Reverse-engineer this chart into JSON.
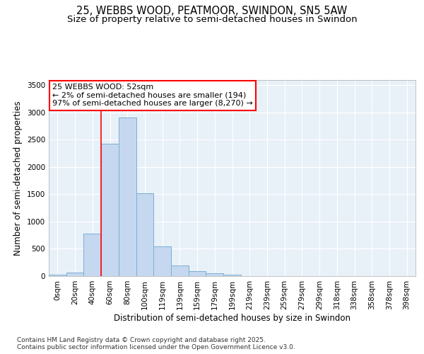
{
  "title_line1": "25, WEBBS WOOD, PEATMOOR, SWINDON, SN5 5AW",
  "title_line2": "Size of property relative to semi-detached houses in Swindon",
  "xlabel": "Distribution of semi-detached houses by size in Swindon",
  "ylabel": "Number of semi-detached properties",
  "footer": "Contains HM Land Registry data © Crown copyright and database right 2025.\nContains public sector information licensed under the Open Government Licence v3.0.",
  "bar_labels": [
    "0sqm",
    "20sqm",
    "40sqm",
    "60sqm",
    "80sqm",
    "100sqm",
    "119sqm",
    "139sqm",
    "159sqm",
    "179sqm",
    "199sqm",
    "219sqm",
    "239sqm",
    "259sqm",
    "279sqm",
    "299sqm",
    "318sqm",
    "338sqm",
    "358sqm",
    "378sqm",
    "398sqm"
  ],
  "bar_values": [
    20,
    60,
    780,
    2420,
    2900,
    1520,
    550,
    200,
    90,
    50,
    30,
    0,
    0,
    0,
    0,
    0,
    0,
    0,
    0,
    0,
    0
  ],
  "bar_color": "#c5d8f0",
  "bar_edge_color": "#7aafd4",
  "red_line_x": 2.5,
  "annotation_text": "25 WEBBS WOOD: 52sqm\n← 2% of semi-detached houses are smaller (194)\n97% of semi-detached houses are larger (8,270) →",
  "annotation_box_color": "white",
  "annotation_box_edge": "red",
  "yticks": [
    0,
    500,
    1000,
    1500,
    2000,
    2500,
    3000,
    3500
  ],
  "ylim": [
    0,
    3600
  ],
  "background_color": "#e8f0f8",
  "title_fontsize": 10.5,
  "subtitle_fontsize": 9.5,
  "axis_label_fontsize": 8.5,
  "tick_fontsize": 7.5,
  "annotation_fontsize": 8,
  "footer_fontsize": 6.5
}
